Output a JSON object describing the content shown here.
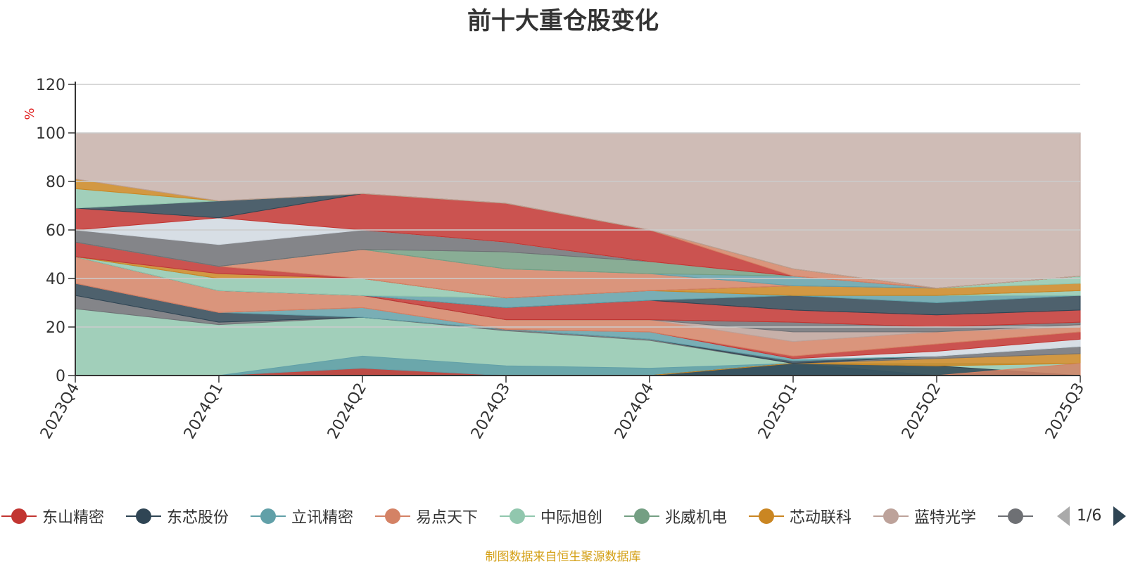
{
  "chart_data": {
    "type": "area",
    "title": "前十大重仓股变化",
    "ylabel": "%",
    "xlabel": "",
    "ylim": [
      0,
      120
    ],
    "yticks": [
      0,
      20,
      40,
      60,
      80,
      100,
      120
    ],
    "grid": true,
    "categories": [
      "2023Q4",
      "2024Q1",
      "2024Q2",
      "2024Q3",
      "2024Q4",
      "2025Q1",
      "2025Q2",
      "2025Q3"
    ],
    "series": [
      {
        "name": "东山精密",
        "color": "#c23531"
      },
      {
        "name": "东芯股份",
        "color": "#2f4554"
      },
      {
        "name": "立讯精密",
        "color": "#61a0a8"
      },
      {
        "name": "易点天下",
        "color": "#d48265"
      },
      {
        "name": "中际旭创",
        "color": "#91c7ae"
      },
      {
        "name": "兆威机电",
        "color": "#749f83"
      },
      {
        "name": "芯动联科",
        "color": "#ca8622"
      },
      {
        "name": "蓝特光学",
        "color": "#bda29a"
      },
      {
        "name": "",
        "color": "#6e7074"
      }
    ],
    "bands": [
      {
        "color": "#91c7ae",
        "values": [
          [
            0,
            27.5
          ],
          [
            0,
            21
          ],
          [
            0,
            24
          ],
          [
            0,
            18.5
          ],
          [
            0,
            14.5
          ],
          [
            0,
            5
          ],
          [
            0,
            5
          ],
          [
            0,
            5
          ]
        ]
      },
      {
        "color": "#c23531",
        "values": [
          [
            0,
            0
          ],
          [
            0,
            0
          ],
          [
            0,
            3
          ],
          [
            0,
            0
          ],
          [
            0,
            0
          ],
          [
            0,
            0
          ],
          [
            0,
            0
          ],
          [
            0,
            0
          ]
        ]
      },
      {
        "color": "#61a0a8",
        "values": [
          [
            0,
            0
          ],
          [
            0,
            0
          ],
          [
            3,
            8
          ],
          [
            0,
            4
          ],
          [
            0,
            3
          ],
          [
            0,
            5
          ],
          [
            0,
            0
          ],
          [
            0,
            0
          ]
        ]
      },
      {
        "color": "#2f4554",
        "values": [
          [
            0,
            0
          ],
          [
            0,
            0
          ],
          [
            0,
            0
          ],
          [
            0,
            0
          ],
          [
            0,
            0
          ],
          [
            0,
            5
          ],
          [
            0,
            4
          ],
          [
            0,
            0
          ]
        ]
      },
      {
        "color": "#ca8622",
        "values": [
          [
            0,
            0
          ],
          [
            0,
            0
          ],
          [
            0,
            0
          ],
          [
            0,
            0
          ],
          [
            0,
            0
          ],
          [
            5,
            5
          ],
          [
            4,
            7
          ],
          [
            5,
            9
          ]
        ]
      },
      {
        "color": "#d48265",
        "values": [
          [
            0,
            0
          ],
          [
            0,
            0
          ],
          [
            0,
            0
          ],
          [
            0,
            0
          ],
          [
            0,
            0
          ],
          [
            0,
            0
          ],
          [
            0,
            0
          ],
          [
            0,
            5
          ]
        ]
      },
      {
        "color": "#6e7074",
        "values": [
          [
            27.5,
            33
          ],
          [
            21,
            22
          ],
          [
            24,
            24
          ],
          [
            18.5,
            19
          ],
          [
            14.5,
            15
          ],
          [
            5,
            5
          ],
          [
            7,
            8
          ],
          [
            9,
            12
          ]
        ]
      },
      {
        "color": "#2f4554",
        "values": [
          [
            33,
            38
          ],
          [
            22,
            26
          ],
          [
            24,
            24
          ],
          [
            19,
            19
          ],
          [
            15,
            15
          ],
          [
            5,
            6
          ],
          [
            8,
            8
          ],
          [
            12,
            12
          ]
        ]
      },
      {
        "color": "#61a0a8",
        "values": [
          [
            38,
            38
          ],
          [
            26,
            26
          ],
          [
            24,
            28
          ],
          [
            19,
            19
          ],
          [
            15,
            18
          ],
          [
            6,
            7
          ],
          [
            8,
            8
          ],
          [
            12,
            12
          ]
        ]
      },
      {
        "color": "#d0d8e0",
        "values": [
          [
            38,
            38
          ],
          [
            26,
            26
          ],
          [
            28,
            28
          ],
          [
            19,
            19
          ],
          [
            18,
            18
          ],
          [
            7,
            7
          ],
          [
            8,
            10
          ],
          [
            12,
            15
          ]
        ]
      },
      {
        "color": "#c23531",
        "values": [
          [
            38,
            38
          ],
          [
            26,
            26
          ],
          [
            28,
            28
          ],
          [
            19,
            19
          ],
          [
            18,
            18
          ],
          [
            7,
            8
          ],
          [
            10,
            13
          ],
          [
            15,
            18
          ]
        ]
      },
      {
        "color": "#d48265",
        "values": [
          [
            38,
            49
          ],
          [
            26,
            35
          ],
          [
            28,
            33
          ],
          [
            19,
            23
          ],
          [
            18,
            23
          ],
          [
            8,
            14
          ],
          [
            13,
            18
          ],
          [
            18,
            20
          ]
        ]
      },
      {
        "color": "#bda29a",
        "values": [
          [
            49,
            49
          ],
          [
            35,
            35
          ],
          [
            33,
            33
          ],
          [
            23,
            23
          ],
          [
            23,
            23
          ],
          [
            14,
            18
          ],
          [
            18,
            18
          ],
          [
            20,
            21
          ]
        ]
      },
      {
        "color": "#6e7074",
        "values": [
          [
            49,
            49
          ],
          [
            35,
            35
          ],
          [
            33,
            33
          ],
          [
            23,
            23
          ],
          [
            23,
            23
          ],
          [
            18,
            22
          ],
          [
            18,
            20
          ],
          [
            21,
            22
          ]
        ]
      },
      {
        "color": "#c23531",
        "values": [
          [
            49,
            49
          ],
          [
            35,
            35
          ],
          [
            33,
            33
          ],
          [
            23,
            28
          ],
          [
            23,
            31
          ],
          [
            22,
            27
          ],
          [
            20,
            25
          ],
          [
            22,
            27
          ]
        ]
      },
      {
        "color": "#2f4554",
        "values": [
          [
            49,
            49
          ],
          [
            35,
            35
          ],
          [
            33,
            33
          ],
          [
            28,
            28
          ],
          [
            31,
            31
          ],
          [
            27,
            33
          ],
          [
            25,
            30
          ],
          [
            27,
            33
          ]
        ]
      },
      {
        "color": "#61a0a8",
        "values": [
          [
            49,
            49
          ],
          [
            35,
            35
          ],
          [
            33,
            33
          ],
          [
            28,
            32
          ],
          [
            31,
            35
          ],
          [
            33,
            33
          ],
          [
            30,
            33
          ],
          [
            33,
            33
          ]
        ]
      },
      {
        "color": "#91c7ae",
        "values": [
          [
            49,
            49
          ],
          [
            35,
            40
          ],
          [
            33,
            40
          ],
          [
            32,
            32
          ],
          [
            35,
            35
          ],
          [
            33,
            33
          ],
          [
            33,
            33
          ],
          [
            33,
            35
          ]
        ]
      },
      {
        "color": "#749f83",
        "values": [
          [
            49,
            49
          ],
          [
            40,
            40
          ],
          [
            40,
            40
          ],
          [
            32,
            32
          ],
          [
            35,
            35
          ],
          [
            33,
            33
          ],
          [
            33,
            33
          ],
          [
            35,
            35
          ]
        ]
      },
      {
        "color": "#ca8622",
        "values": [
          [
            49,
            49
          ],
          [
            40,
            42
          ],
          [
            40,
            40
          ],
          [
            32,
            32
          ],
          [
            35,
            35
          ],
          [
            33,
            37
          ],
          [
            33,
            36
          ],
          [
            35,
            38
          ]
        ]
      },
      {
        "color": "#91c7ae",
        "values": [
          [
            49,
            49
          ],
          [
            42,
            42
          ],
          [
            40,
            40
          ],
          [
            32,
            32
          ],
          [
            35,
            35
          ],
          [
            37,
            37
          ],
          [
            36,
            36
          ],
          [
            38,
            41
          ]
        ]
      },
      {
        "color": "#c23531",
        "values": [
          [
            49,
            55
          ],
          [
            42,
            45
          ],
          [
            40,
            40
          ],
          [
            32,
            32
          ],
          [
            35,
            35
          ],
          [
            37,
            37
          ],
          [
            36,
            36
          ],
          [
            41,
            41
          ]
        ]
      },
      {
        "color": "#d48265",
        "values": [
          [
            55,
            55
          ],
          [
            45,
            45
          ],
          [
            40,
            52
          ],
          [
            32,
            44
          ],
          [
            35,
            42
          ],
          [
            37,
            37
          ],
          [
            36,
            36
          ],
          [
            41,
            41
          ]
        ]
      },
      {
        "color": "#61a0a8",
        "values": [
          [
            55,
            55
          ],
          [
            45,
            45
          ],
          [
            52,
            52
          ],
          [
            44,
            44
          ],
          [
            42,
            42
          ],
          [
            37,
            41
          ],
          [
            36,
            36
          ],
          [
            41,
            41
          ]
        ]
      },
      {
        "color": "#749f83",
        "values": [
          [
            55,
            55
          ],
          [
            45,
            45
          ],
          [
            52,
            52
          ],
          [
            44,
            51
          ],
          [
            42,
            47
          ],
          [
            41,
            41
          ],
          [
            36,
            36
          ],
          [
            41,
            41
          ]
        ]
      },
      {
        "color": "#6e7074",
        "values": [
          [
            55,
            60
          ],
          [
            45,
            54
          ],
          [
            52,
            60
          ],
          [
            51,
            55
          ],
          [
            47,
            47
          ],
          [
            41,
            41
          ],
          [
            36,
            36
          ],
          [
            41,
            41
          ]
        ]
      },
      {
        "color": "#d0d8e0",
        "values": [
          [
            60,
            60
          ],
          [
            54,
            65
          ],
          [
            60,
            60
          ],
          [
            55,
            55
          ],
          [
            47,
            47
          ],
          [
            41,
            41
          ],
          [
            36,
            36
          ],
          [
            41,
            41
          ]
        ]
      },
      {
        "color": "#c23531",
        "values": [
          [
            60,
            69
          ],
          [
            65,
            65
          ],
          [
            60,
            75
          ],
          [
            55,
            71
          ],
          [
            47,
            60
          ],
          [
            41,
            41
          ],
          [
            36,
            36
          ],
          [
            41,
            41
          ]
        ]
      },
      {
        "color": "#d48265",
        "values": [
          [
            69,
            69
          ],
          [
            65,
            65
          ],
          [
            75,
            75
          ],
          [
            71,
            71
          ],
          [
            60,
            60
          ],
          [
            41,
            44
          ],
          [
            36,
            36
          ],
          [
            41,
            41
          ]
        ]
      },
      {
        "color": "#2f4554",
        "values": [
          [
            69,
            69
          ],
          [
            65,
            72
          ],
          [
            75,
            75
          ],
          [
            71,
            71
          ],
          [
            60,
            60
          ],
          [
            44,
            44
          ],
          [
            36,
            36
          ],
          [
            41,
            41
          ]
        ]
      },
      {
        "color": "#91c7ae",
        "values": [
          [
            69,
            77
          ],
          [
            72,
            72
          ],
          [
            75,
            75
          ],
          [
            71,
            71
          ],
          [
            60,
            60
          ],
          [
            44,
            44
          ],
          [
            36,
            36
          ],
          [
            41,
            41
          ]
        ]
      },
      {
        "color": "#ca8622",
        "values": [
          [
            77,
            81
          ],
          [
            72,
            72
          ],
          [
            75,
            75
          ],
          [
            71,
            71
          ],
          [
            60,
            60
          ],
          [
            44,
            44
          ],
          [
            36,
            36
          ],
          [
            41,
            41
          ]
        ]
      },
      {
        "color": "#bda29a",
        "values": [
          [
            81,
            100
          ],
          [
            72,
            100
          ],
          [
            75,
            100
          ],
          [
            71,
            100
          ],
          [
            60,
            100
          ],
          [
            44,
            100
          ],
          [
            36,
            100
          ],
          [
            41,
            100
          ]
        ]
      }
    ]
  },
  "legend_pager": {
    "text": "1/6",
    "prev_color": "#aaaaaa",
    "next_color": "#2f4554"
  },
  "source_note": "制图数据来自恒生聚源数据库"
}
